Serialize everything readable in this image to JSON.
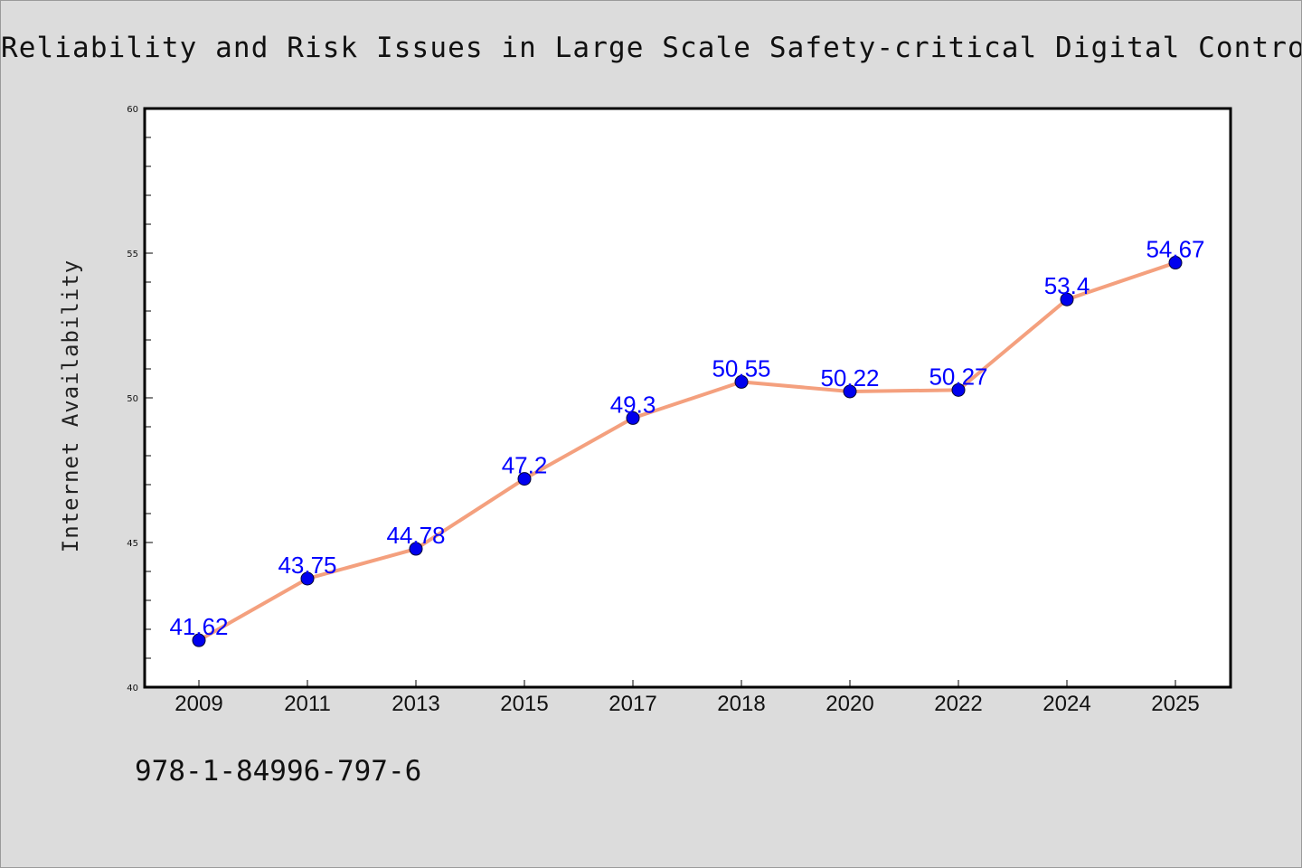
{
  "colors": {
    "background": "#dcdcdc",
    "plot_background": "#ffffff",
    "line": "#f4a07e",
    "marker": "#0000ee",
    "data_label": "#0000ff"
  },
  "footer": {
    "code": "978-1-84996-797-6"
  },
  "chart_data": {
    "type": "line",
    "title": "Reliability and Risk Issues in Large Scale Safety-critical Digital Control Syste",
    "xlabel": "",
    "ylabel": "Internet Availability",
    "categories": [
      "2009",
      "2011",
      "2013",
      "2015",
      "2017",
      "2018",
      "2020",
      "2022",
      "2024",
      "2025"
    ],
    "series": [
      {
        "values": [
          41.62,
          43.75,
          44.78,
          47.2,
          49.3,
          50.55,
          50.22,
          50.27,
          53.4,
          54.67
        ]
      }
    ],
    "data_labels": [
      "41.62",
      "43.75",
      "44.78",
      "47.2",
      "49.3",
      "50.55",
      "50.22",
      "50.27",
      "53.4",
      "54.67"
    ],
    "ylim": [
      40,
      60
    ],
    "yticks": [
      "40",
      "45",
      "50",
      "55",
      "60"
    ],
    "grid": false,
    "legend": "none"
  }
}
